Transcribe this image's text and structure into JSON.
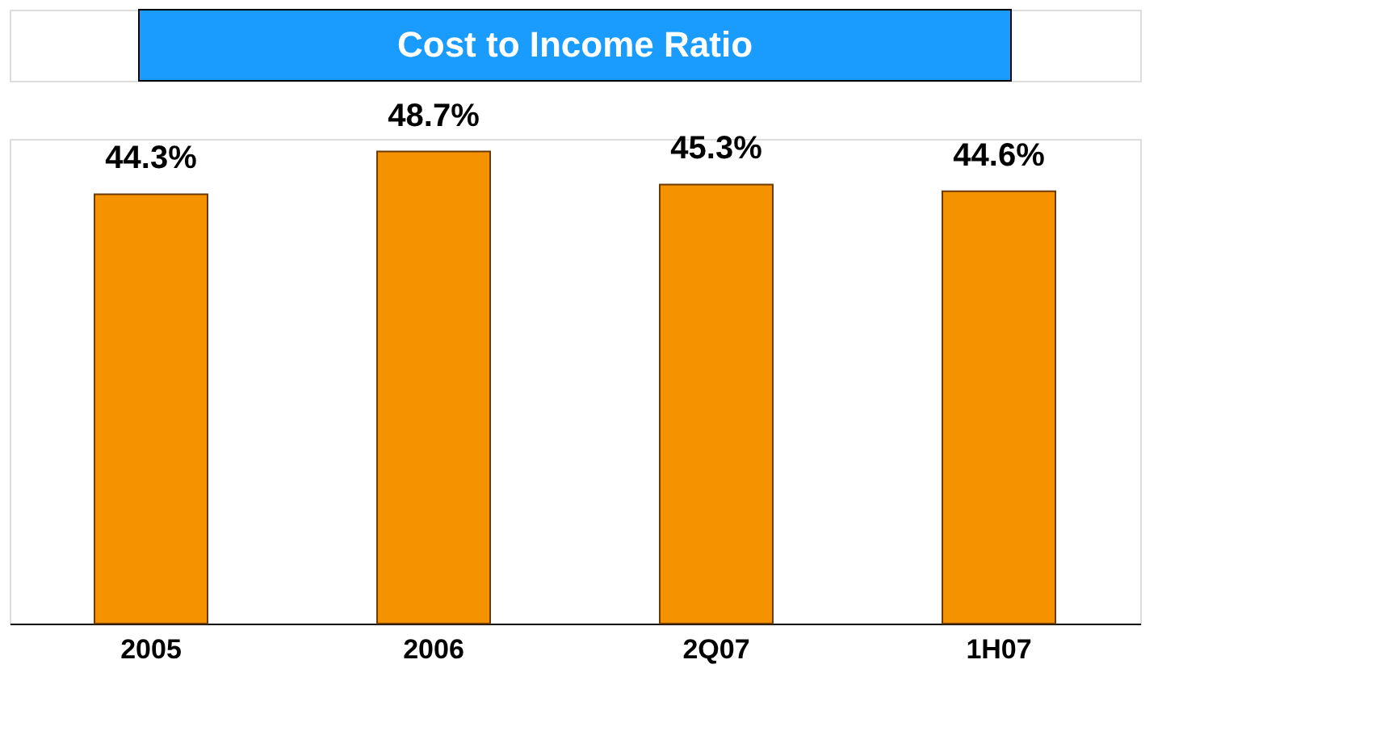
{
  "chart_data": {
    "type": "bar",
    "title": "Cost to Income Ratio",
    "categories": [
      "2005",
      "2006",
      "2Q07",
      "1H07"
    ],
    "values": [
      44.3,
      48.7,
      45.3,
      44.6
    ],
    "value_labels": [
      "44.3%",
      "48.7%",
      "45.3%",
      "44.6%"
    ],
    "color": "#f59200",
    "tick_labels": "x",
    "grid": false
  }
}
